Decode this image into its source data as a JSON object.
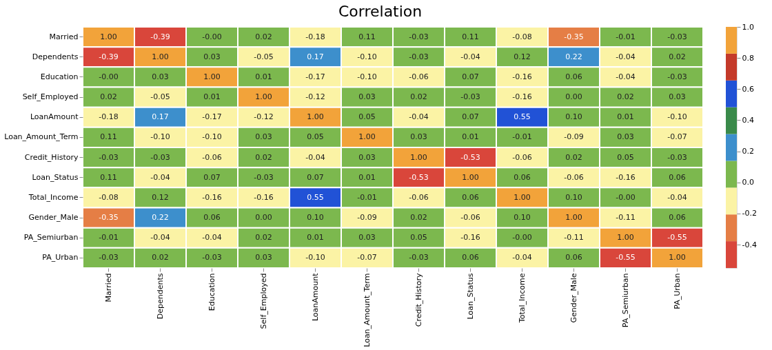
{
  "chart_data": {
    "type": "heatmap",
    "title": "Correlation",
    "categories": [
      "Married",
      "Dependents",
      "Education",
      "Self_Employed",
      "LoanAmount",
      "Loan_Amount_Term",
      "Credit_History",
      "Loan_Status",
      "Total_Income",
      "Gender_Male",
      "PA_Semiurban",
      "PA_Urban"
    ],
    "y_categories": [
      "Married",
      "Dependents",
      "Education",
      "Self_Employed",
      "LoanAmount",
      "Loan_Amount_Term",
      "Credit_History",
      "Loan_Status",
      "Total_Income",
      "Gender_Male",
      "PA_Semiurban",
      "PA_Urban"
    ],
    "cells": [
      [
        1.0,
        -0.39,
        -0.0,
        0.02,
        -0.18,
        0.11,
        -0.03,
        0.11,
        -0.08,
        -0.35,
        -0.01,
        -0.03
      ],
      [
        -0.39,
        1.0,
        0.03,
        -0.05,
        0.17,
        -0.1,
        -0.03,
        -0.04,
        0.12,
        0.22,
        -0.04,
        0.02
      ],
      [
        -0.0,
        0.03,
        1.0,
        0.01,
        -0.17,
        -0.1,
        -0.06,
        0.07,
        -0.16,
        0.06,
        -0.04,
        -0.03
      ],
      [
        0.02,
        -0.05,
        0.01,
        1.0,
        -0.12,
        0.03,
        0.02,
        -0.03,
        -0.16,
        0.0,
        0.02,
        0.03
      ],
      [
        -0.18,
        0.17,
        -0.17,
        -0.12,
        1.0,
        0.05,
        -0.04,
        0.07,
        0.55,
        0.1,
        0.01,
        -0.1
      ],
      [
        0.11,
        -0.1,
        -0.1,
        0.03,
        0.05,
        1.0,
        0.03,
        0.01,
        -0.01,
        -0.09,
        0.03,
        -0.07
      ],
      [
        -0.03,
        -0.03,
        -0.06,
        0.02,
        -0.04,
        0.03,
        1.0,
        -0.53,
        -0.06,
        0.02,
        0.05,
        -0.03
      ],
      [
        0.11,
        -0.04,
        0.07,
        -0.03,
        0.07,
        0.01,
        -0.53,
        1.0,
        0.06,
        -0.06,
        -0.16,
        0.06
      ],
      [
        -0.08,
        0.12,
        -0.16,
        -0.16,
        0.55,
        -0.01,
        -0.06,
        0.06,
        1.0,
        0.1,
        -0.0,
        -0.04
      ],
      [
        -0.35,
        0.22,
        0.06,
        0.0,
        0.1,
        -0.09,
        0.02,
        -0.06,
        0.1,
        1.0,
        -0.11,
        0.06
      ],
      [
        -0.01,
        -0.04,
        -0.04,
        0.02,
        0.01,
        0.03,
        0.05,
        -0.16,
        -0.0,
        -0.11,
        1.0,
        -0.55
      ],
      [
        -0.03,
        0.02,
        -0.03,
        0.03,
        -0.1,
        -0.07,
        -0.03,
        0.06,
        -0.04,
        0.06,
        -0.55,
        1.0
      ]
    ],
    "cell_labels": [
      [
        "1.00",
        "-0.39",
        "-0.00",
        "0.02",
        "-0.18",
        "0.11",
        "-0.03",
        "0.11",
        "-0.08",
        "-0.35",
        "-0.01",
        "-0.03"
      ],
      [
        "-0.39",
        "1.00",
        "0.03",
        "-0.05",
        "0.17",
        "-0.10",
        "-0.03",
        "-0.04",
        "0.12",
        "0.22",
        "-0.04",
        "0.02"
      ],
      [
        "-0.00",
        "0.03",
        "1.00",
        "0.01",
        "-0.17",
        "-0.10",
        "-0.06",
        "0.07",
        "-0.16",
        "0.06",
        "-0.04",
        "-0.03"
      ],
      [
        "0.02",
        "-0.05",
        "0.01",
        "1.00",
        "-0.12",
        "0.03",
        "0.02",
        "-0.03",
        "-0.16",
        "0.00",
        "0.02",
        "0.03"
      ],
      [
        "-0.18",
        "0.17",
        "-0.17",
        "-0.12",
        "1.00",
        "0.05",
        "-0.04",
        "0.07",
        "0.55",
        "0.10",
        "0.01",
        "-0.10"
      ],
      [
        "0.11",
        "-0.10",
        "-0.10",
        "0.03",
        "0.05",
        "1.00",
        "0.03",
        "0.01",
        "-0.01",
        "-0.09",
        "0.03",
        "-0.07"
      ],
      [
        "-0.03",
        "-0.03",
        "-0.06",
        "0.02",
        "-0.04",
        "0.03",
        "1.00",
        "-0.53",
        "-0.06",
        "0.02",
        "0.05",
        "-0.03"
      ],
      [
        "0.11",
        "-0.04",
        "0.07",
        "-0.03",
        "0.07",
        "0.01",
        "-0.53",
        "1.00",
        "0.06",
        "-0.06",
        "-0.16",
        "0.06"
      ],
      [
        "-0.08",
        "0.12",
        "-0.16",
        "-0.16",
        "0.55",
        "-0.01",
        "-0.06",
        "0.06",
        "1.00",
        "0.10",
        "-0.00",
        "-0.04"
      ],
      [
        "-0.35",
        "0.22",
        "0.06",
        "0.00",
        "0.10",
        "-0.09",
        "0.02",
        "-0.06",
        "0.10",
        "1.00",
        "-0.11",
        "0.06"
      ],
      [
        "-0.01",
        "-0.04",
        "-0.04",
        "0.02",
        "0.01",
        "0.03",
        "0.05",
        "-0.16",
        "-0.00",
        "-0.11",
        "1.00",
        "-0.55"
      ],
      [
        "-0.03",
        "0.02",
        "-0.03",
        "0.03",
        "-0.10",
        "-0.07",
        "-0.03",
        "0.06",
        "-0.04",
        "0.06",
        "-0.55",
        "1.00"
      ]
    ],
    "colors": [
      "#d9463b",
      "#e57e45",
      "#fbf3a5",
      "#7cb84e",
      "#3d8fcc",
      "#3a8a4a",
      "#2152d6",
      "#c43a2a",
      "#f2a33a"
    ],
    "clim": [
      -0.55,
      1.0
    ],
    "cticks": [
      {
        "value": -0.4,
        "label": "-0.4"
      },
      {
        "value": -0.2,
        "label": "-0.2"
      },
      {
        "value": 0,
        "label": "0.0"
      },
      {
        "value": 0.2,
        "label": "0.2"
      },
      {
        "value": 0.4,
        "label": "0.4"
      },
      {
        "value": 0.6,
        "label": "0.6"
      },
      {
        "value": 0.8,
        "label": "0.8"
      },
      {
        "value": 1,
        "label": "1.0"
      }
    ],
    "data_labels": true
  }
}
